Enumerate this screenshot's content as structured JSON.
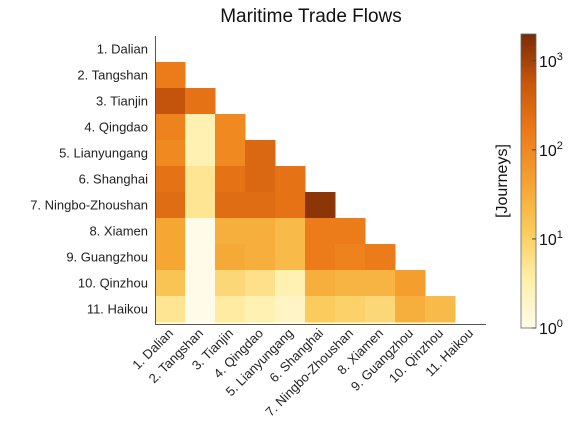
{
  "chart_data": {
    "type": "heatmap",
    "title": "Maritime Trade Flows",
    "labels": [
      "1. Dalian",
      "2. Tangshan",
      "3. Tianjin",
      "4. Qingdao",
      "5. Lianyungang",
      "6. Shanghai",
      "7. Ningbo-Zhoushan",
      "8. Xiamen",
      "9. Guangzhou",
      "10. Qinzhou",
      "11. Haikou"
    ],
    "layout": "lower-triangular",
    "scale": "log",
    "colorbar": {
      "label": "[Journeys]",
      "range": [
        1,
        2000
      ],
      "ticks": [
        {
          "value": 1,
          "base": "10",
          "exp": "0"
        },
        {
          "value": 10,
          "base": "10",
          "exp": "1"
        },
        {
          "value": 100,
          "base": "10",
          "exp": "2"
        },
        {
          "value": 1000,
          "base": "10",
          "exp": "3"
        }
      ],
      "colors": [
        "#fffbe8",
        "#ffefaa",
        "#fbca5a",
        "#f4a22f",
        "#ec7a18",
        "#c8560c",
        "#7a2c06"
      ]
    },
    "matrix": [
      [
        null,
        null,
        null,
        null,
        null,
        null,
        null,
        null,
        null,
        null,
        null
      ],
      [
        150,
        null,
        null,
        null,
        null,
        null,
        null,
        null,
        null,
        null,
        null
      ],
      [
        600,
        200,
        null,
        null,
        null,
        null,
        null,
        null,
        null,
        null,
        null
      ],
      [
        120,
        3,
        100,
        null,
        null,
        null,
        null,
        null,
        null,
        null,
        null
      ],
      [
        100,
        3,
        100,
        300,
        null,
        null,
        null,
        null,
        null,
        null,
        null
      ],
      [
        200,
        5,
        200,
        300,
        200,
        null,
        null,
        null,
        null,
        null,
        null
      ],
      [
        250,
        5,
        250,
        250,
        200,
        1500,
        null,
        null,
        null,
        null,
        null
      ],
      [
        40,
        1,
        30,
        30,
        20,
        150,
        150,
        null,
        null,
        null,
        null
      ],
      [
        40,
        1,
        35,
        30,
        20,
        150,
        120,
        150,
        null,
        null,
        null
      ],
      [
        15,
        1,
        8,
        6,
        3,
        30,
        25,
        25,
        50,
        null,
        null
      ],
      [
        5,
        1,
        4,
        3,
        2,
        12,
        10,
        8,
        30,
        20,
        null
      ]
    ]
  }
}
